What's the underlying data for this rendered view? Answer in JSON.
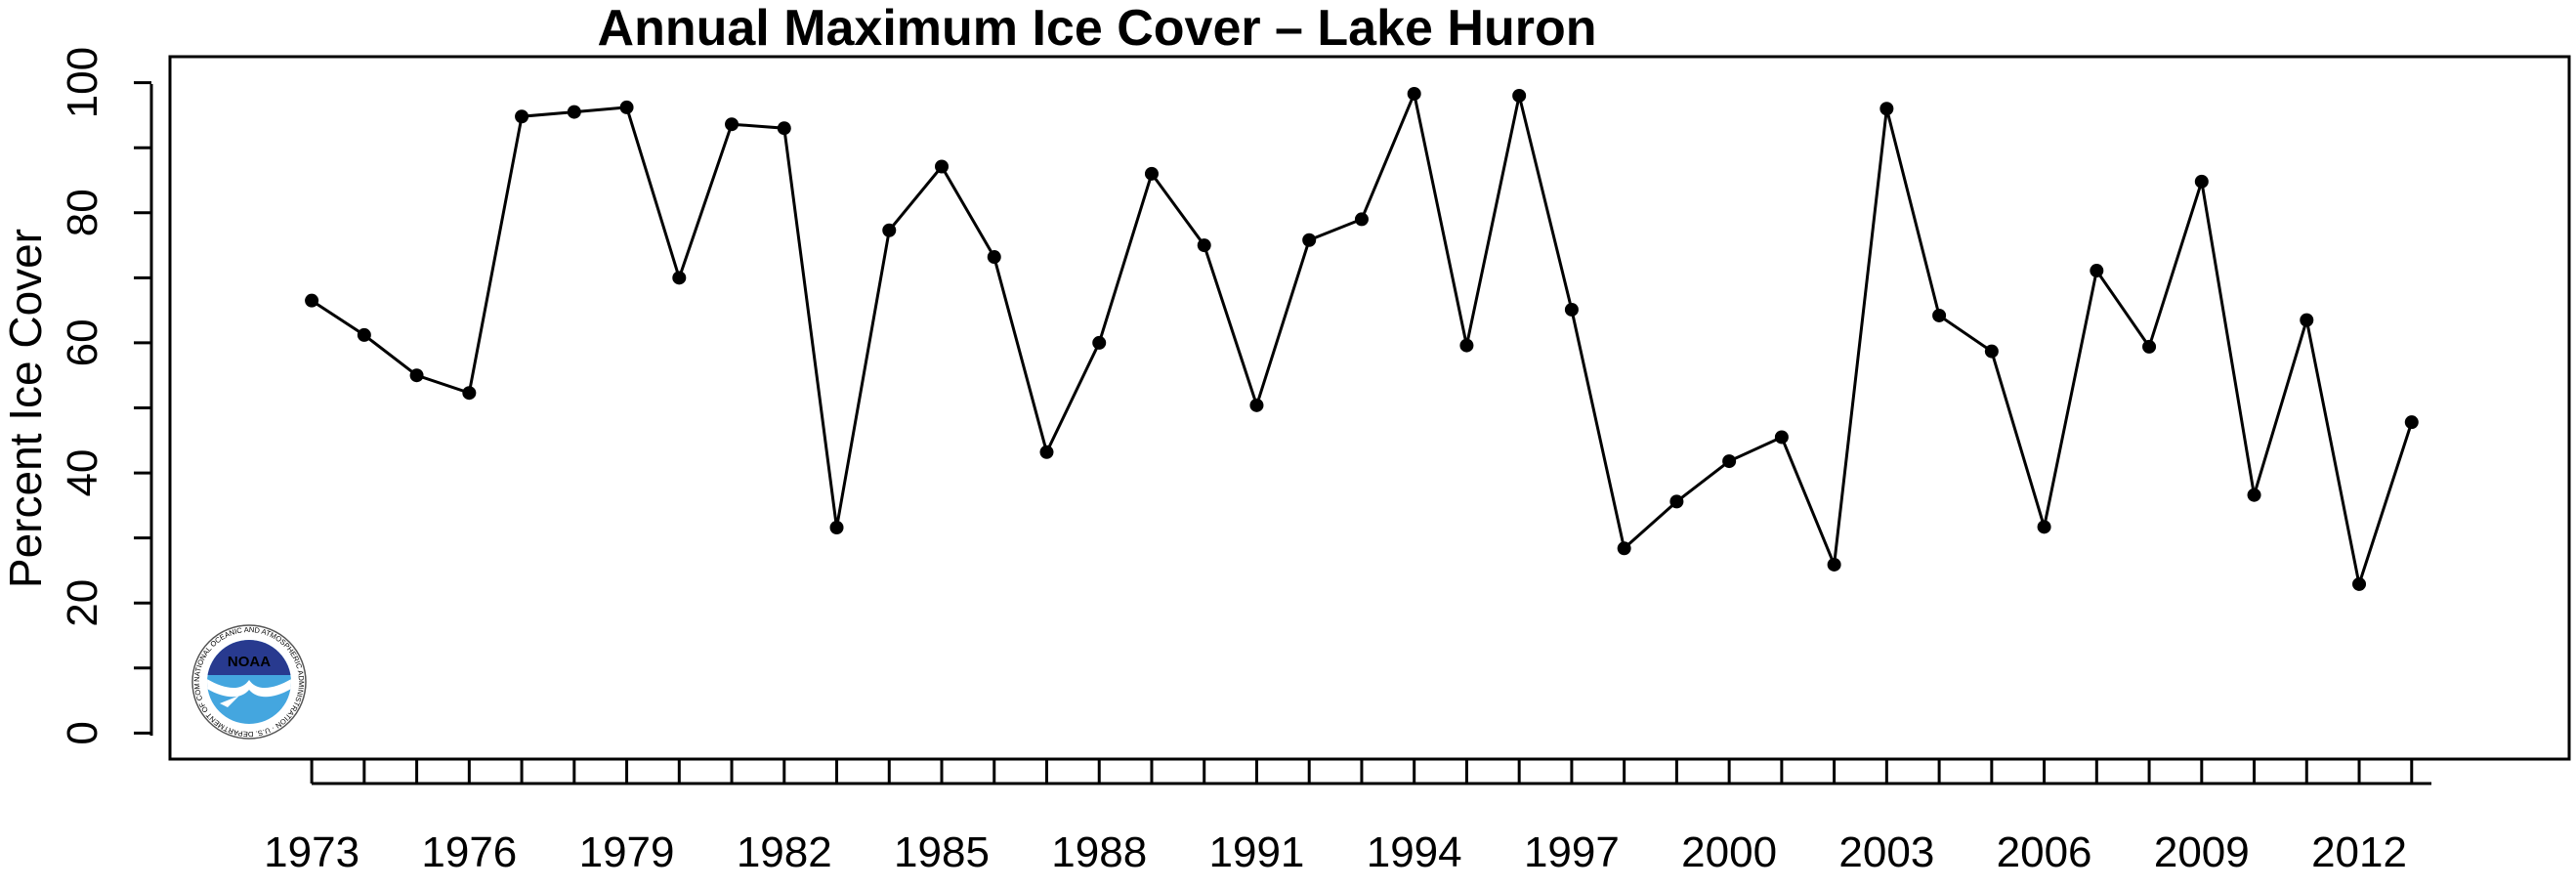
{
  "chart_data": {
    "type": "line",
    "title": "Annual Maximum Ice Cover – Lake Huron",
    "xlabel": "",
    "ylabel": "Percent Ice Cover",
    "xlim": [
      1970.3,
      2016
    ],
    "ylim": [
      -4,
      104
    ],
    "grid": false,
    "x": [
      1973,
      1974,
      1975,
      1976,
      1977,
      1978,
      1979,
      1980,
      1981,
      1982,
      1983,
      1984,
      1985,
      1986,
      1987,
      1988,
      1989,
      1990,
      1991,
      1992,
      1993,
      1994,
      1995,
      1996,
      1997,
      1998,
      1999,
      2000,
      2001,
      2002,
      2003,
      2004,
      2005,
      2006,
      2007,
      2008,
      2009,
      2010,
      2011,
      2012,
      2013
    ],
    "x_tick_labels": [
      "1973",
      "1976",
      "1979",
      "1982",
      "1985",
      "1988",
      "1991",
      "1994",
      "1997",
      "2000",
      "2003",
      "2006",
      "2009",
      "2012"
    ],
    "y_ticks": [
      0,
      20,
      40,
      60,
      80,
      100
    ],
    "series": [
      {
        "values": [
          66.5,
          61.2,
          55.0,
          52.3,
          94.8,
          95.5,
          96.2,
          70.0,
          93.6,
          93.0,
          31.6,
          77.3,
          87.1,
          73.2,
          43.2,
          60.0,
          86.0,
          75.0,
          50.4,
          75.8,
          79.0,
          98.3,
          59.6,
          98.0,
          65.1,
          28.4,
          35.6,
          41.8,
          45.5,
          25.9,
          96.0,
          64.2,
          58.7,
          31.7,
          71.1,
          59.4,
          84.8,
          36.6,
          63.5,
          22.9,
          47.8
        ]
      }
    ]
  },
  "logo": {
    "name": "NOAA",
    "ring_text": "NATIONAL OCEANIC AND ATMOSPHERIC ADMINISTRATION · U.S. DEPARTMENT OF COMMERCE ·"
  }
}
